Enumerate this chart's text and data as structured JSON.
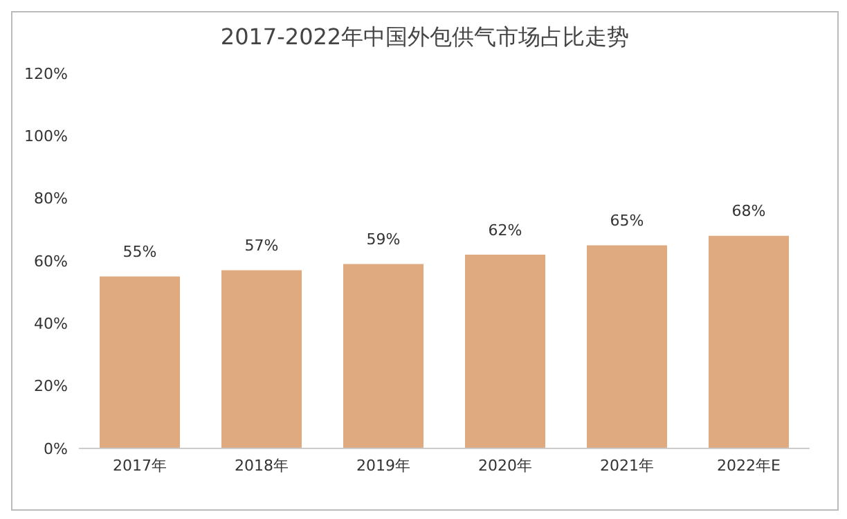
{
  "chart_data": {
    "type": "bar",
    "title": "2017-2022年中国外包供气市场占比走势",
    "categories": [
      "2017年",
      "2018年",
      "2019年",
      "2020年",
      "2021年",
      "2022年E"
    ],
    "values": [
      55,
      57,
      59,
      62,
      65,
      68
    ],
    "value_labels": [
      "55%",
      "57%",
      "59%",
      "62%",
      "65%",
      "68%"
    ],
    "color": "#e0aa80",
    "ylim": [
      0,
      120
    ],
    "yticks": [
      {
        "value": 0,
        "label": "0%"
      },
      {
        "value": 20,
        "label": "20%"
      },
      {
        "value": 40,
        "label": "40%"
      },
      {
        "value": 60,
        "label": "60%"
      },
      {
        "value": 80,
        "label": "80%"
      },
      {
        "value": 100,
        "label": "100%"
      },
      {
        "value": 120,
        "label": "120%"
      }
    ],
    "grid": false,
    "legend": false
  }
}
